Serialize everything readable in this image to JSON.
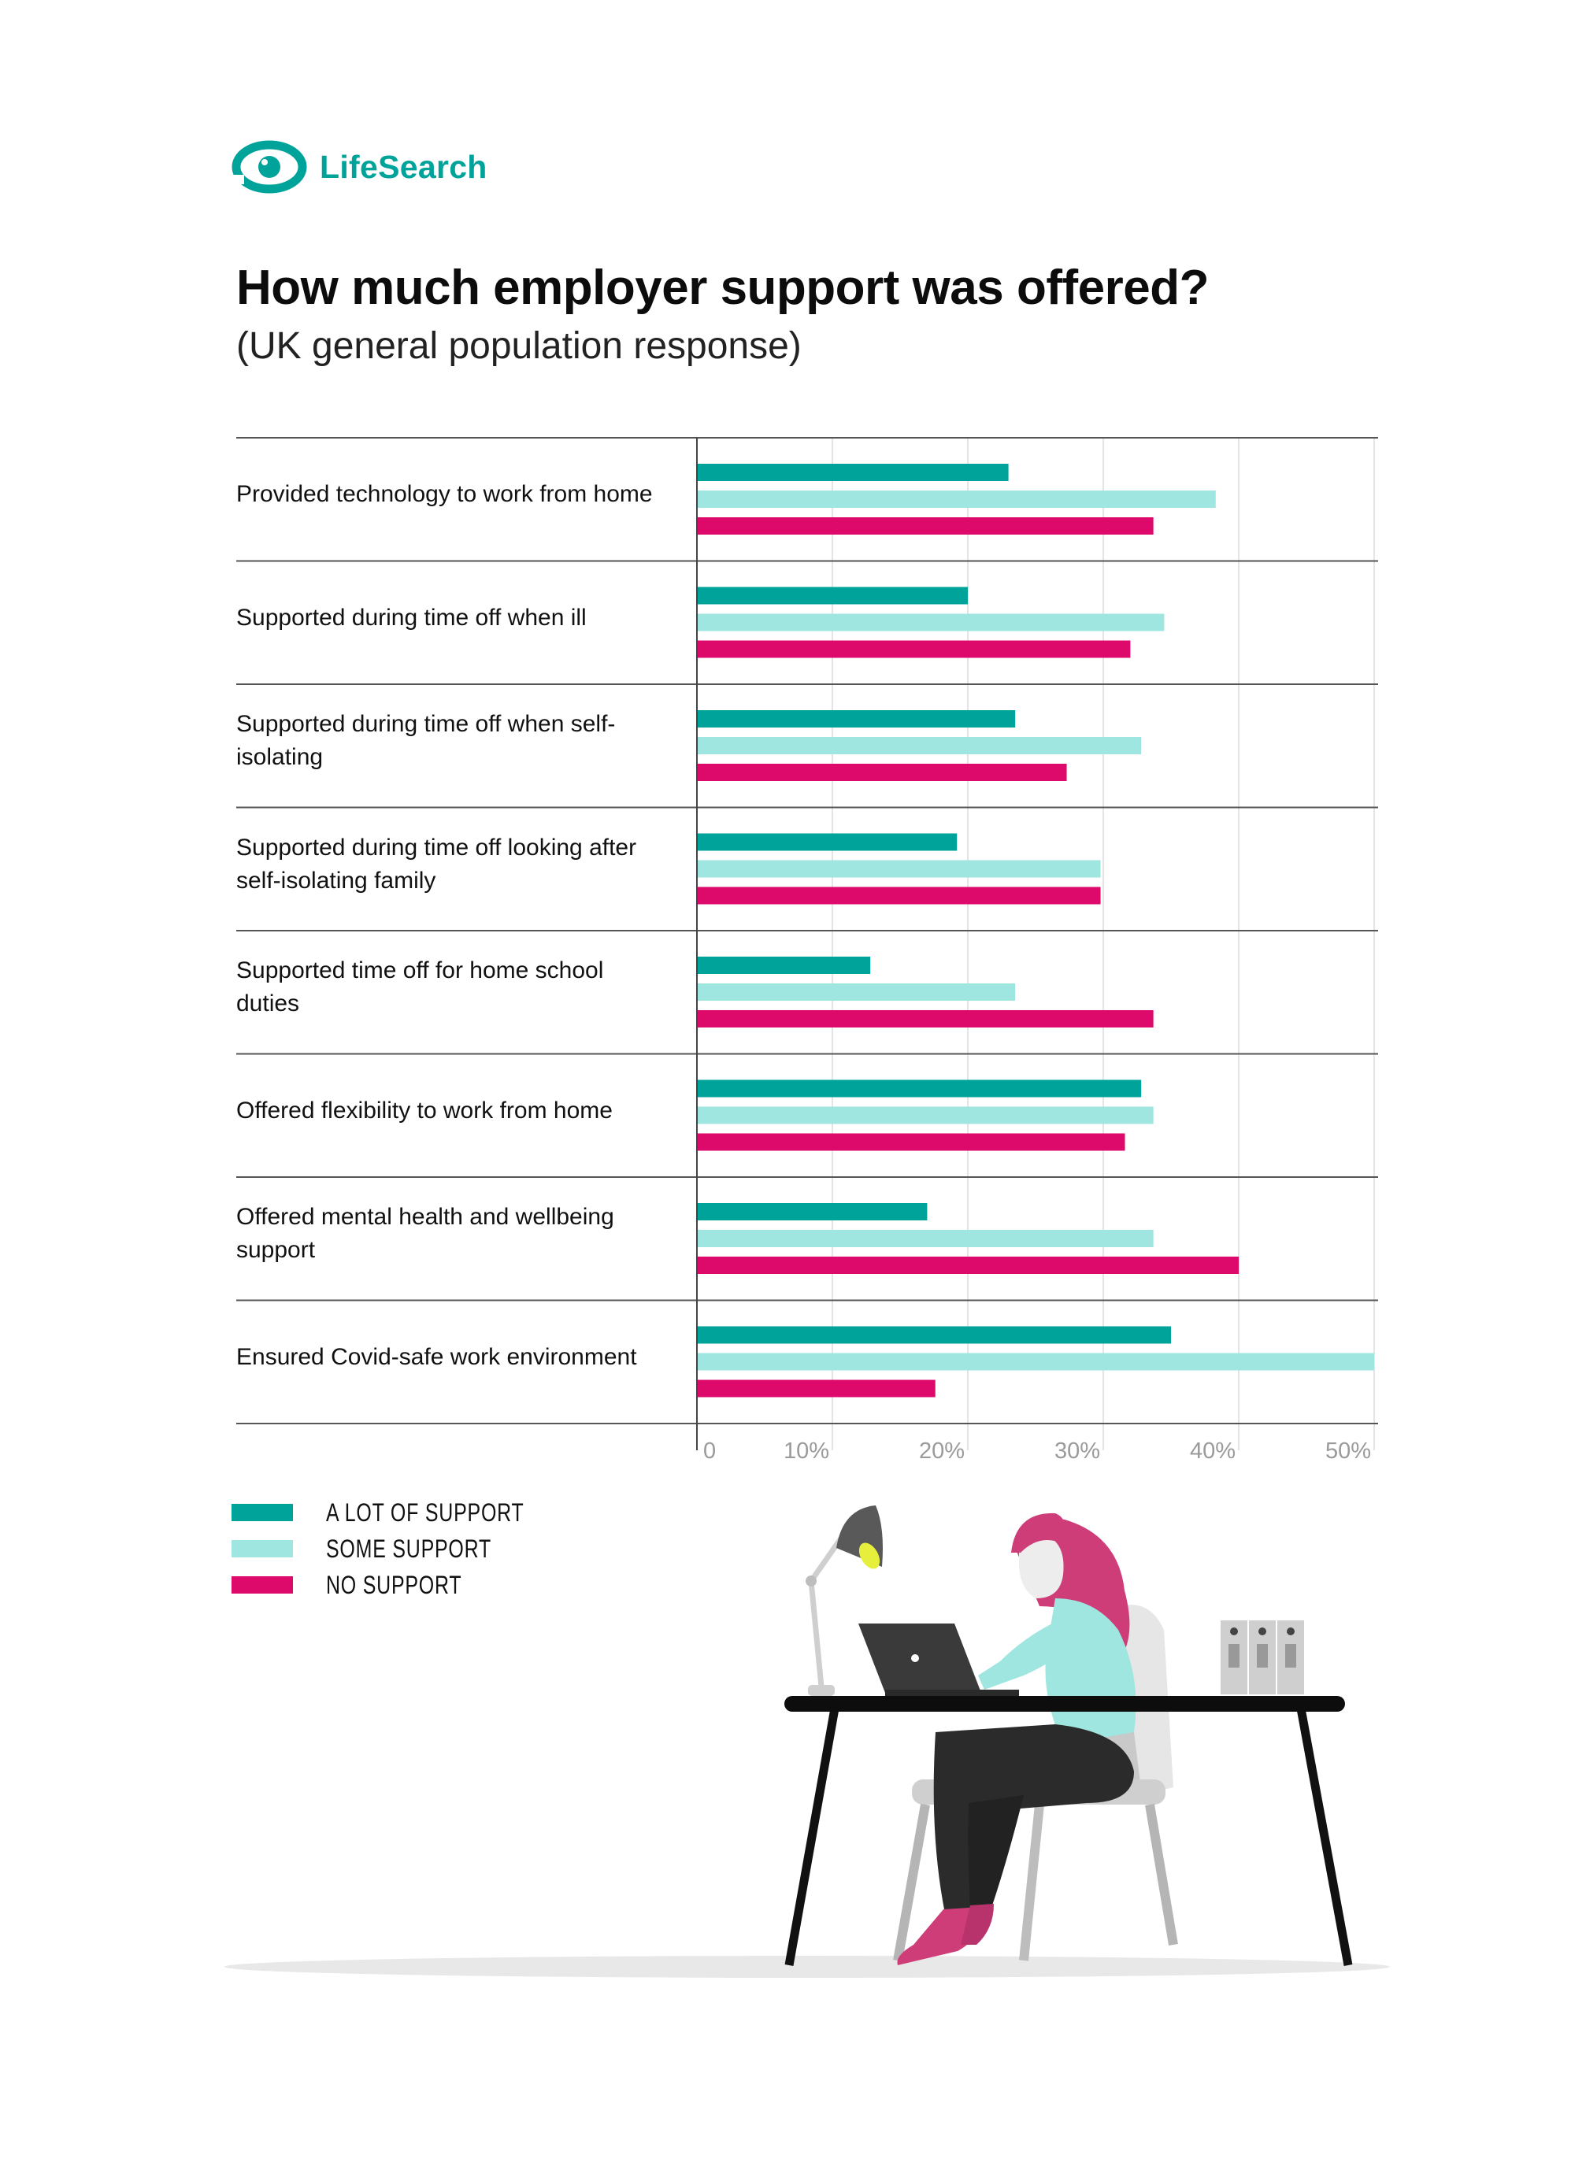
{
  "brand": {
    "name": "LifeSearch",
    "color": "#00a39a",
    "icon": "eye-logo-icon"
  },
  "header": {
    "title": "How much employer support was offered?",
    "subtitle": "(UK general population response)"
  },
  "chart_data": {
    "type": "bar",
    "orientation": "horizontal",
    "title": "How much employer support was offered?",
    "subtitle": "(UK general population response)",
    "categories": [
      "Provided technology to work from home",
      "Supported during time off when ill",
      "Supported during time off when self-isolating",
      "Supported during time off looking after self-isolating family",
      "Supported time off for home school duties",
      "Offered flexibility to work from home",
      "Offered mental health and wellbeing support",
      "Ensured Covid-safe work environment"
    ],
    "series": [
      {
        "name": "A LOT OF SUPPORT",
        "color": "#00a39a",
        "values": [
          23,
          20,
          23.5,
          19.2,
          12.8,
          32.8,
          17,
          35
        ]
      },
      {
        "name": "SOME SUPPORT",
        "color": "#9ee6df",
        "values": [
          38.3,
          34.5,
          32.8,
          29.8,
          23.5,
          33.7,
          33.7,
          50
        ]
      },
      {
        "name": "NO SUPPORT",
        "color": "#dd0a6b",
        "values": [
          33.7,
          32,
          27.3,
          29.8,
          33.7,
          31.6,
          40,
          17.6
        ]
      }
    ],
    "xlim": [
      0,
      50
    ],
    "ticks": [
      0,
      10,
      20,
      30,
      40,
      50
    ],
    "tick_labels": [
      "0",
      "10%",
      "20%",
      "30%",
      "40%",
      "50%"
    ],
    "grid": true,
    "legend_position": "bottom-left"
  },
  "illustration": {
    "icon": "woman-working-at-laptop-illustration"
  }
}
